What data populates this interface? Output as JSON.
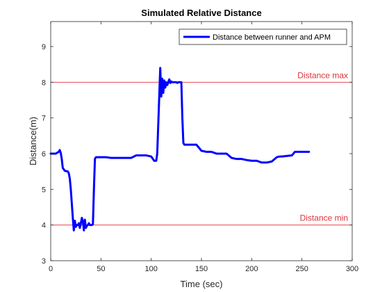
{
  "chart_data": {
    "type": "line",
    "title": "Simulated Relative Distance",
    "xlabel": "Time (sec)",
    "ylabel": "Distance(m)",
    "xlim": [
      0,
      300
    ],
    "ylim": [
      3,
      9.7
    ],
    "xticks": [
      "0",
      "50",
      "100",
      "150",
      "200",
      "250",
      "300"
    ],
    "yticks": [
      "3",
      "4",
      "5",
      "6",
      "7",
      "8",
      "9"
    ],
    "grid": false,
    "legend": {
      "placement": "top-right",
      "entries": [
        "Distance between runner and APM"
      ]
    },
    "reference_lines": [
      {
        "label": "Distance max",
        "y": 8,
        "color": "#e0303a"
      },
      {
        "label": "Distance min",
        "y": 4,
        "color": "#e0303a"
      }
    ],
    "series": [
      {
        "name": "Distance between runner and APM",
        "color": "#0000ff",
        "x": [
          0,
          5,
          8,
          9,
          10,
          11,
          12,
          14,
          17,
          18,
          19,
          20,
          21,
          22,
          23,
          24,
          25,
          26,
          27,
          28,
          29,
          30,
          31,
          32,
          33,
          34,
          35,
          36,
          37,
          38,
          39,
          40,
          41,
          42,
          43,
          44,
          45,
          50,
          55,
          60,
          70,
          80,
          85,
          95,
          100,
          103,
          105,
          106,
          107,
          108,
          109,
          110,
          111,
          112,
          113,
          114,
          115,
          116,
          117,
          118,
          119,
          120,
          121,
          122,
          123,
          124,
          125,
          126,
          127,
          128,
          129,
          130,
          131,
          132,
          133,
          135,
          140,
          145,
          150,
          155,
          160,
          165,
          170,
          175,
          180,
          185,
          190,
          195,
          200,
          205,
          210,
          215,
          220,
          225,
          228,
          230,
          240,
          243,
          245,
          250,
          257
        ],
        "y": [
          6.0,
          6.0,
          6.05,
          6.1,
          6.02,
          5.85,
          5.6,
          5.52,
          5.5,
          5.45,
          5.3,
          5.0,
          4.6,
          4.2,
          3.85,
          4.12,
          3.95,
          4.0,
          4.0,
          4.05,
          3.92,
          4.05,
          4.2,
          4.1,
          3.85,
          4.15,
          3.92,
          3.98,
          4.0,
          4.05,
          4.0,
          4.0,
          4.0,
          4.02,
          5.0,
          5.85,
          5.9,
          5.9,
          5.9,
          5.88,
          5.88,
          5.88,
          5.95,
          5.95,
          5.92,
          5.8,
          5.8,
          6.0,
          6.8,
          7.6,
          8.4,
          7.6,
          8.1,
          7.7,
          8.05,
          7.85,
          8.0,
          7.92,
          8.0,
          8.08,
          7.98,
          8.02,
          8.0,
          8.0,
          8.0,
          8.0,
          8.0,
          7.98,
          8.0,
          8.0,
          8.0,
          8.0,
          7.0,
          6.3,
          6.25,
          6.25,
          6.25,
          6.25,
          6.08,
          6.05,
          6.05,
          6.0,
          6.0,
          6.0,
          5.88,
          5.85,
          5.85,
          5.82,
          5.8,
          5.8,
          5.75,
          5.75,
          5.78,
          5.9,
          5.92,
          5.92,
          5.95,
          6.05,
          6.05,
          6.05,
          6.05
        ]
      }
    ]
  }
}
